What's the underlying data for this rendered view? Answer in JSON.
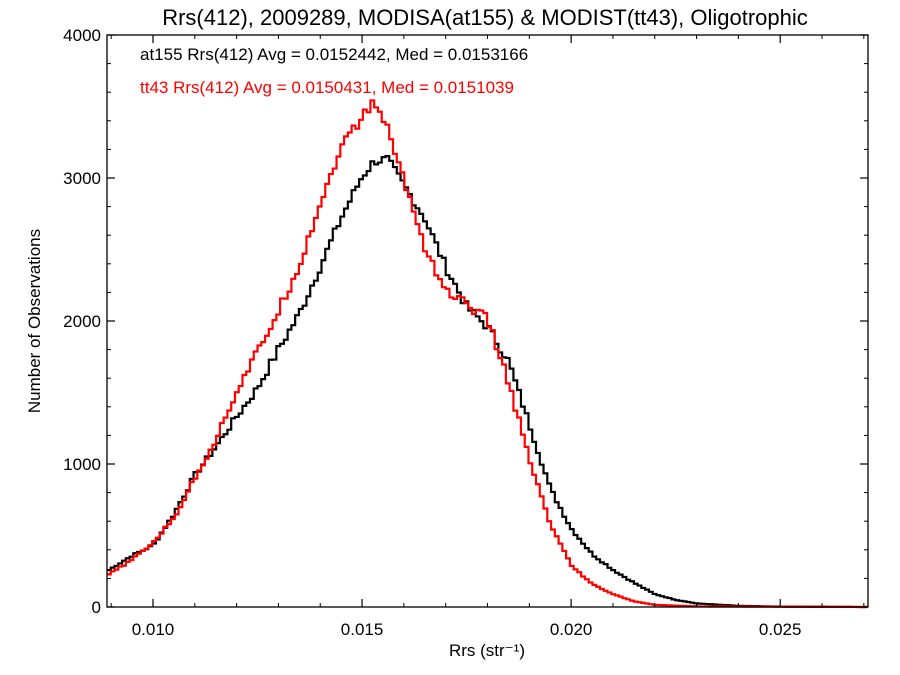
{
  "chart_data": {
    "type": "line",
    "step": true,
    "title": "Rrs(412), 2009289, MODISA(at155) & MODIST(tt43), Oligotrophic",
    "xlabel": "Rrs (str⁻¹)",
    "ylabel": "Number of Observations",
    "xlim": [
      0.0089,
      0.0271
    ],
    "ylim": [
      0,
      4000
    ],
    "grid": false,
    "x_ticks": [
      0.01,
      0.015,
      0.02,
      0.025
    ],
    "x_tick_labels": [
      "0.010",
      "0.015",
      "0.020",
      "0.025"
    ],
    "y_ticks": [
      0,
      1000,
      2000,
      3000,
      4000
    ],
    "y_tick_labels": [
      "0",
      "1000",
      "2000",
      "3000",
      "4000"
    ],
    "annotations": [
      {
        "text": "at155 Rrs(412) Avg = 0.0152442, Med = 0.0153166",
        "color": "#000000"
      },
      {
        "text": "tt43 Rrs(412) Avg = 0.0150431, Med = 0.0151039",
        "color": "#ff0000"
      }
    ],
    "series": [
      {
        "color": "#000000",
        "points": [
          [
            0.0089,
            250
          ],
          [
            0.0095,
            360
          ],
          [
            0.01,
            430
          ],
          [
            0.0105,
            650
          ],
          [
            0.011,
            920
          ],
          [
            0.0115,
            1120
          ],
          [
            0.012,
            1330
          ],
          [
            0.0125,
            1530
          ],
          [
            0.013,
            1800
          ],
          [
            0.0135,
            2050
          ],
          [
            0.014,
            2380
          ],
          [
            0.0145,
            2720
          ],
          [
            0.015,
            3010
          ],
          [
            0.0153,
            3120
          ],
          [
            0.0156,
            3130
          ],
          [
            0.016,
            2950
          ],
          [
            0.0165,
            2720
          ],
          [
            0.017,
            2380
          ],
          [
            0.0175,
            2100
          ],
          [
            0.018,
            1960
          ],
          [
            0.0185,
            1720
          ],
          [
            0.019,
            1280
          ],
          [
            0.0195,
            830
          ],
          [
            0.02,
            550
          ],
          [
            0.0205,
            370
          ],
          [
            0.021,
            260
          ],
          [
            0.0215,
            170
          ],
          [
            0.022,
            90
          ],
          [
            0.0225,
            50
          ],
          [
            0.023,
            25
          ],
          [
            0.024,
            8
          ],
          [
            0.025,
            3
          ],
          [
            0.0271,
            0
          ]
        ]
      },
      {
        "color": "#ff0000",
        "points": [
          [
            0.0089,
            220
          ],
          [
            0.0095,
            330
          ],
          [
            0.01,
            450
          ],
          [
            0.0105,
            620
          ],
          [
            0.011,
            900
          ],
          [
            0.0115,
            1170
          ],
          [
            0.012,
            1510
          ],
          [
            0.0125,
            1780
          ],
          [
            0.013,
            2070
          ],
          [
            0.0135,
            2390
          ],
          [
            0.014,
            2820
          ],
          [
            0.0145,
            3220
          ],
          [
            0.015,
            3420
          ],
          [
            0.0153,
            3540
          ],
          [
            0.0156,
            3350
          ],
          [
            0.016,
            2990
          ],
          [
            0.0165,
            2520
          ],
          [
            0.017,
            2210
          ],
          [
            0.0175,
            2120
          ],
          [
            0.018,
            2010
          ],
          [
            0.0185,
            1580
          ],
          [
            0.019,
            1030
          ],
          [
            0.0195,
            580
          ],
          [
            0.02,
            290
          ],
          [
            0.0205,
            160
          ],
          [
            0.021,
            90
          ],
          [
            0.0215,
            40
          ],
          [
            0.022,
            15
          ],
          [
            0.023,
            4
          ],
          [
            0.0271,
            0
          ]
        ]
      }
    ]
  }
}
